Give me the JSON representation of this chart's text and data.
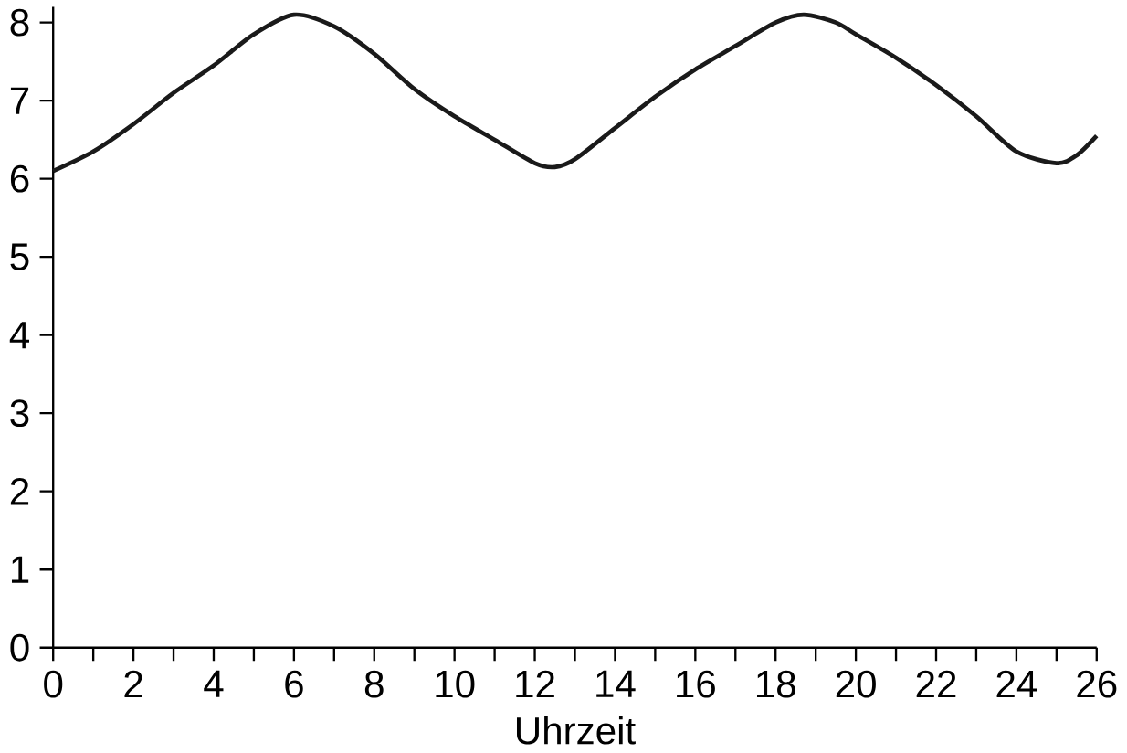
{
  "chart_data": {
    "type": "line",
    "xlabel": "Uhrzeit",
    "x": [
      0,
      1,
      2,
      3,
      4,
      5,
      6,
      7,
      8,
      9,
      10,
      11,
      12,
      12.5,
      13,
      14,
      15,
      16,
      17,
      18,
      18.7,
      19.5,
      20,
      21,
      22,
      23,
      24,
      25,
      25.5,
      26
    ],
    "series": [
      {
        "color": "#1a1a1a",
        "values": [
          6.1,
          6.35,
          6.7,
          7.1,
          7.45,
          7.85,
          8.1,
          7.95,
          7.6,
          7.15,
          6.8,
          6.5,
          6.2,
          6.15,
          6.25,
          6.65,
          7.05,
          7.4,
          7.7,
          8.0,
          8.1,
          8.0,
          7.85,
          7.55,
          7.2,
          6.8,
          6.35,
          6.2,
          6.3,
          6.55
        ]
      }
    ],
    "xlim": [
      0,
      26
    ],
    "ylim": [
      0,
      8.2
    ],
    "xticks": [
      0,
      {
        "value": 1,
        "label": null
      },
      2,
      {
        "value": 3,
        "label": null
      },
      4,
      {
        "value": 5,
        "label": null
      },
      6,
      {
        "value": 7,
        "label": null
      },
      8,
      {
        "value": 9,
        "label": null
      },
      10,
      {
        "value": 11,
        "label": null
      },
      12,
      {
        "value": 13,
        "label": null
      },
      14,
      {
        "value": 15,
        "label": null
      },
      16,
      {
        "value": 17,
        "label": null
      },
      18,
      {
        "value": 19,
        "label": null
      },
      20,
      {
        "value": 21,
        "label": null
      },
      22,
      {
        "value": 23,
        "label": null
      },
      24,
      {
        "value": 25,
        "label": null
      },
      26
    ],
    "yticks": [
      0,
      1,
      2,
      3,
      4,
      5,
      6,
      7,
      8
    ],
    "grid": false,
    "marker": "none",
    "line_style": "solid"
  }
}
